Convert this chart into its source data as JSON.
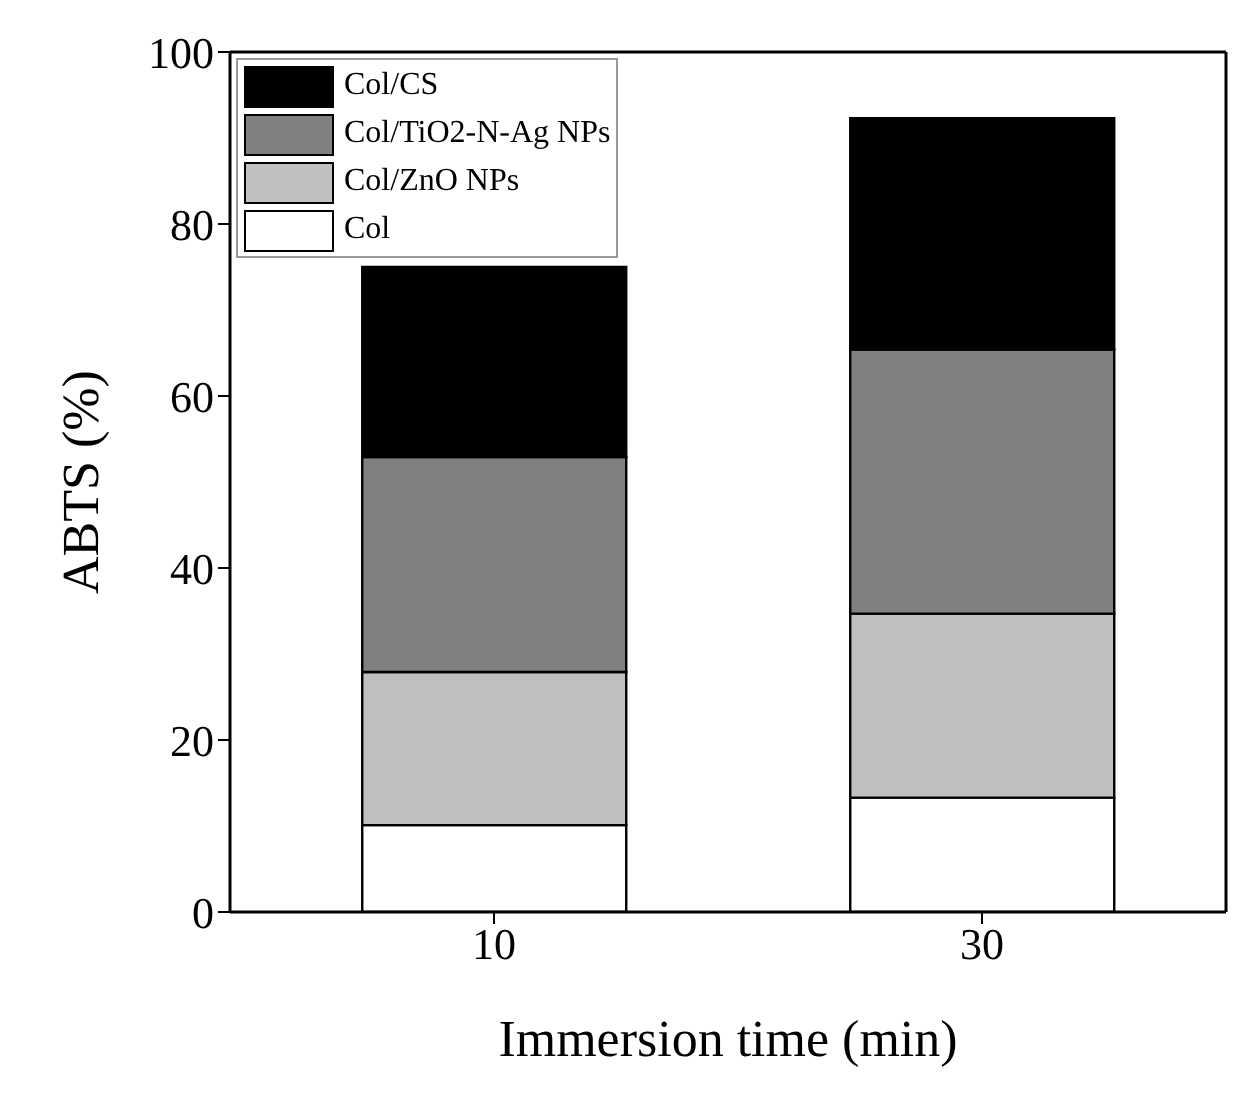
{
  "chart_data": {
    "type": "bar",
    "stacked": true,
    "xlabel": "Immersion time (min)",
    "ylabel": "ABTS (%)",
    "categories": [
      "10",
      "30"
    ],
    "series": [
      {
        "name": "Col",
        "color": "#ffffff",
        "values": [
          10.1,
          13.3
        ]
      },
      {
        "name": "Col/ZnO NPs",
        "color": "#c0c0c0",
        "values": [
          17.8,
          21.4
        ]
      },
      {
        "name": "Col/TiO2-N-Ag NPs",
        "color": "#808080",
        "values": [
          25.0,
          30.7
        ]
      },
      {
        "name": "Col/CS",
        "color": "#000000",
        "values": [
          22.1,
          26.9
        ]
      }
    ],
    "ylim": [
      0,
      100
    ],
    "yticks": [
      0,
      20,
      40,
      60,
      80,
      100
    ],
    "grid": false,
    "legend": "top left"
  }
}
